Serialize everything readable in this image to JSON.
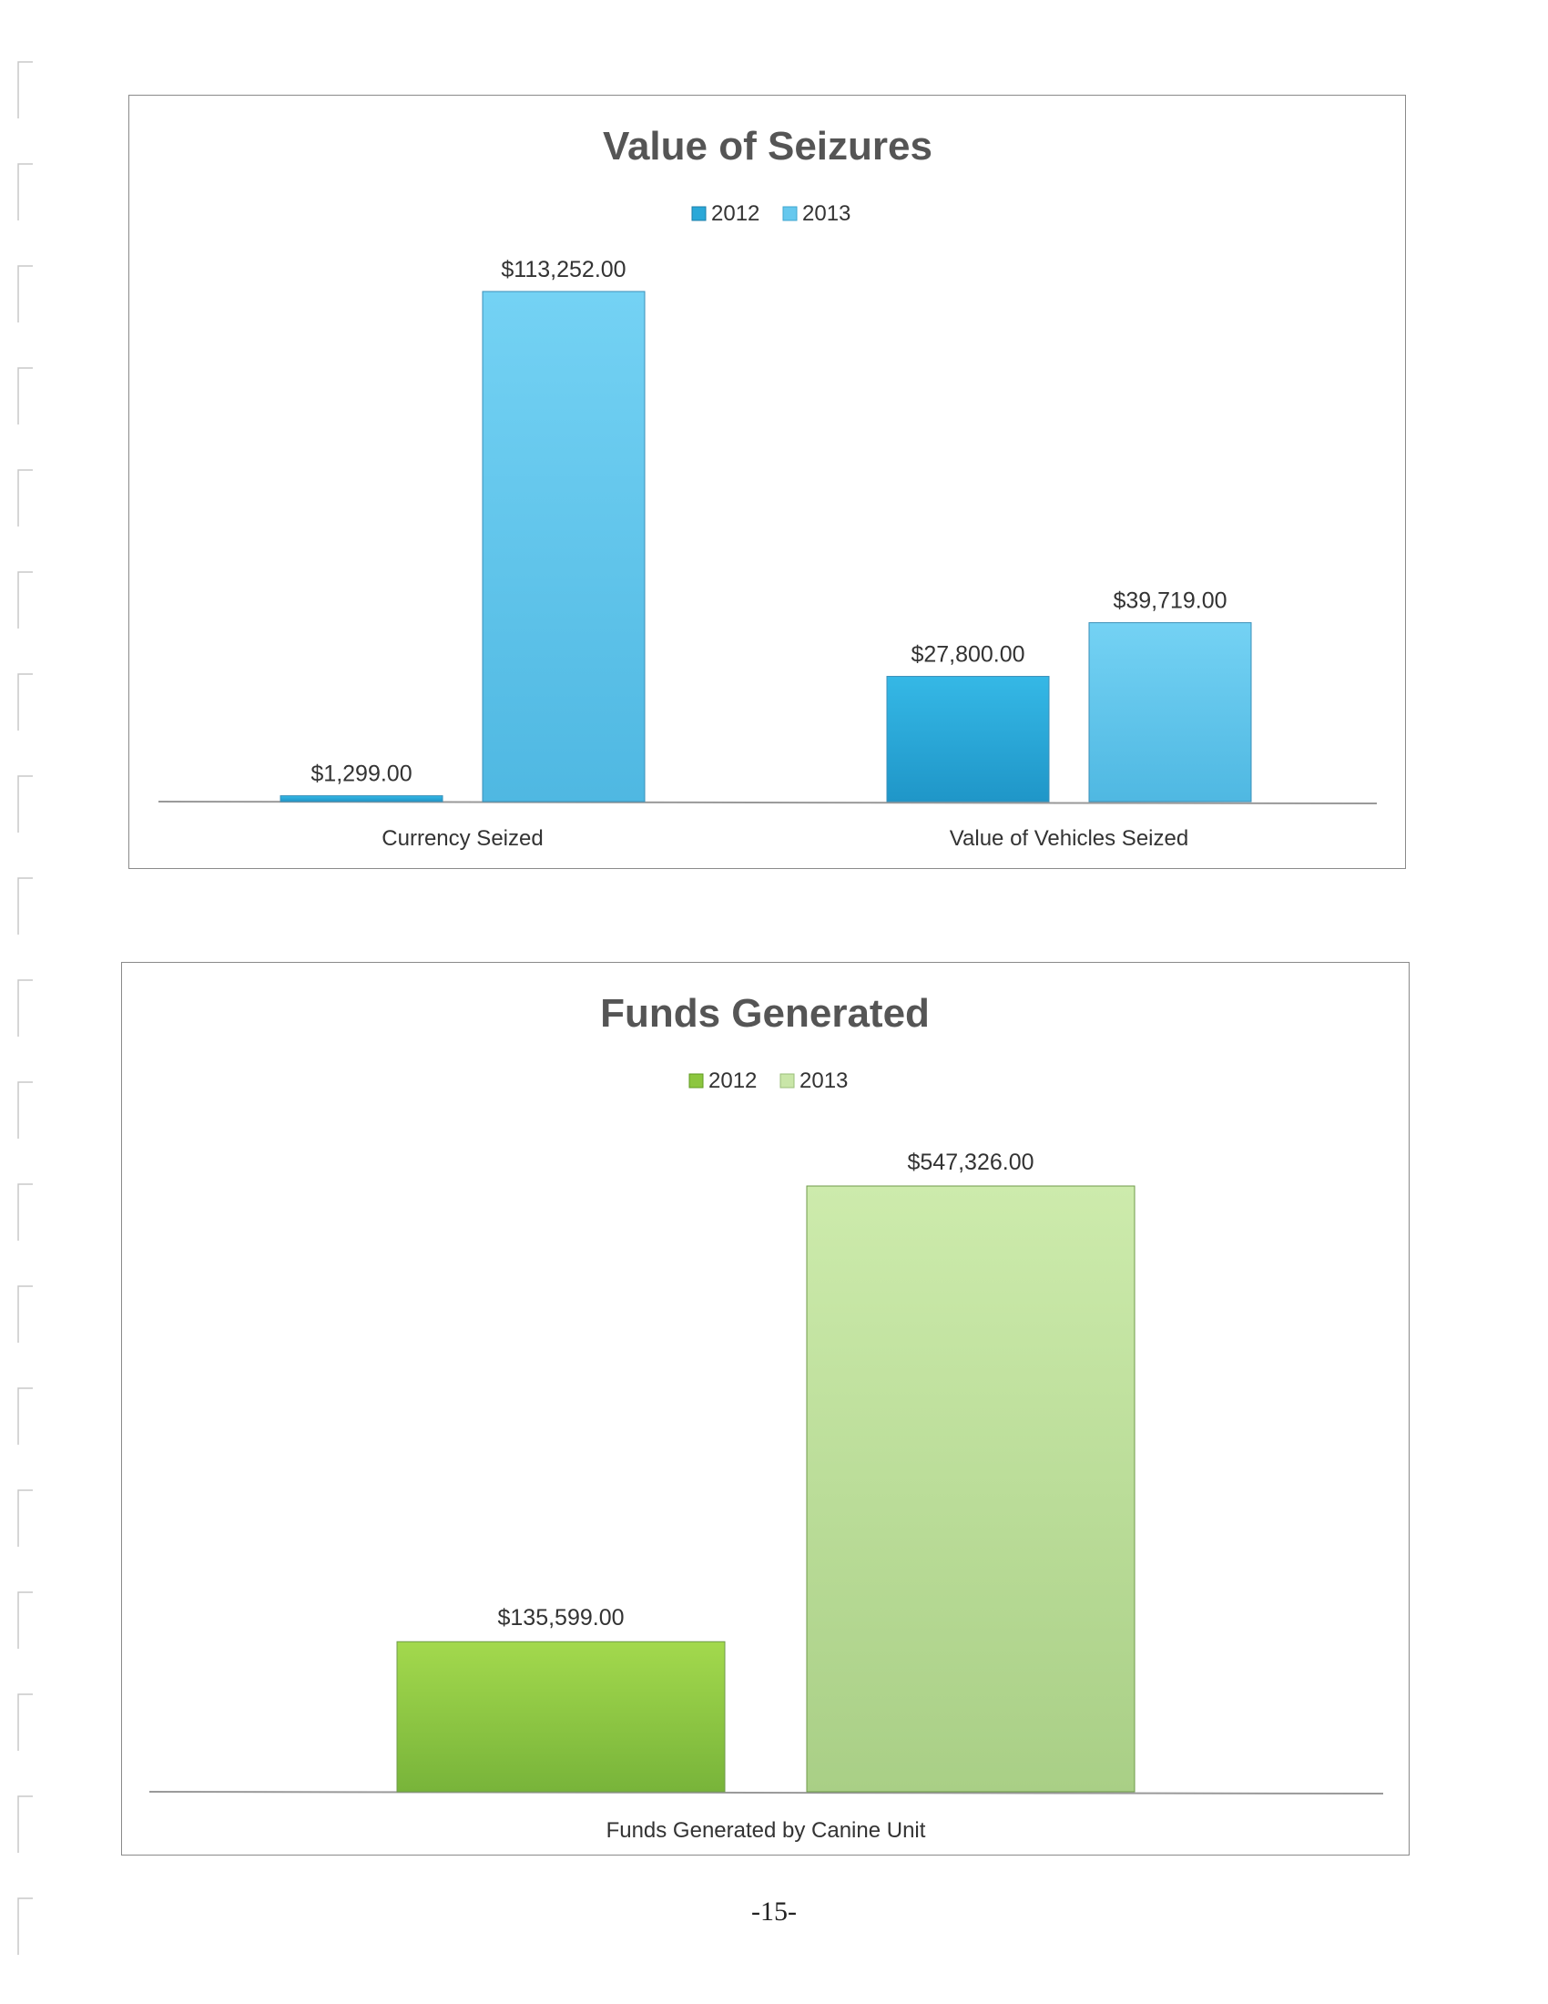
{
  "page": {
    "page_number": "-15-"
  },
  "chart_data": [
    {
      "type": "bar",
      "title": "Value of Seizures",
      "categories": [
        "Currency Seized",
        "Value of Vehicles Seized"
      ],
      "series": [
        {
          "name": "2012",
          "values": [
            1299,
            27800
          ],
          "labels": [
            "$1,299.00",
            "$27,800.00"
          ]
        },
        {
          "name": "2013",
          "values": [
            113252,
            39719
          ],
          "labels": [
            "$113,252.00",
            "$39,719.00"
          ]
        }
      ],
      "ylim": [
        0,
        113252
      ],
      "grid": false,
      "legend": "top-center",
      "colors": {
        "2012": "#2aa8d8",
        "2013": "#66c8ee"
      }
    },
    {
      "type": "bar",
      "title": "Funds Generated",
      "categories": [
        "Funds Generated by Canine Unit"
      ],
      "series": [
        {
          "name": "2012",
          "values": [
            135599
          ],
          "labels": [
            "$135,599.00"
          ]
        },
        {
          "name": "2013",
          "values": [
            547326
          ],
          "labels": [
            "$547,326.00"
          ]
        }
      ],
      "ylim": [
        0,
        547326
      ],
      "grid": false,
      "legend": "top-center",
      "colors": {
        "2012": "#8cc63f",
        "2013": "#bfe29a"
      }
    }
  ]
}
